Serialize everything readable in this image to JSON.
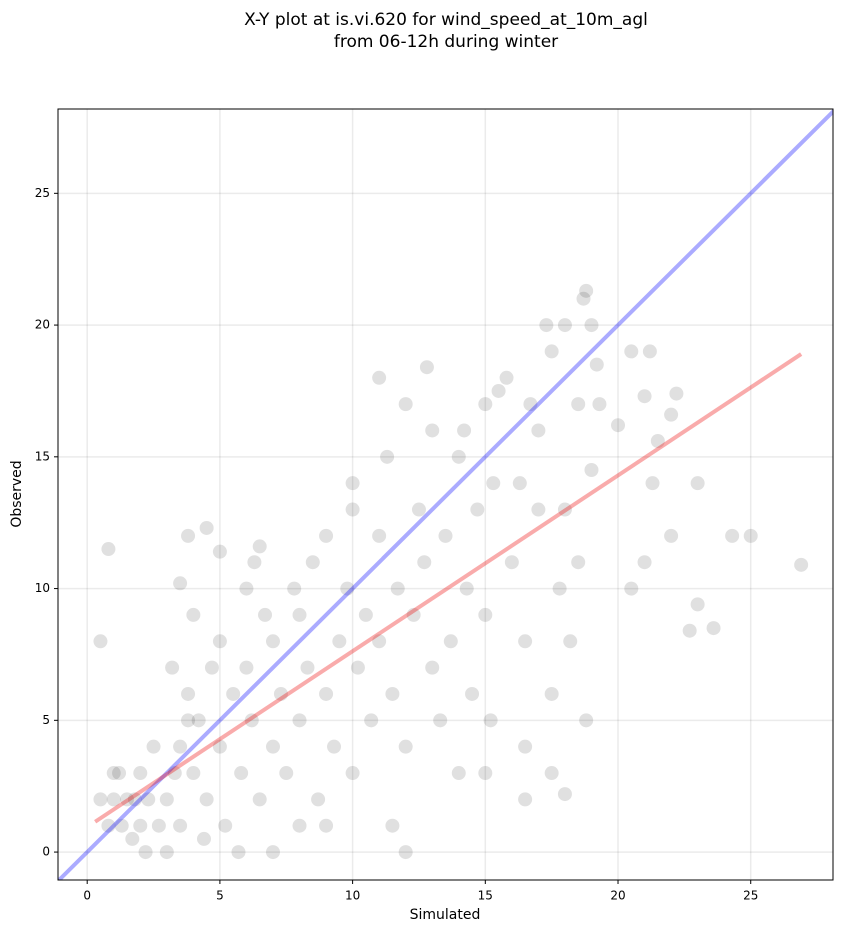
{
  "chart_data": {
    "type": "scatter",
    "title": [
      "X-Y plot at is.vi.620 for wind_speed_at_10m_agl",
      "from 06-12h during winter"
    ],
    "x_label": "Simulated",
    "y_label": "Observed",
    "xlim": [
      -1.1,
      28.1
    ],
    "ylim": [
      -1.06,
      28.2
    ],
    "xticks": [
      0,
      5,
      10,
      15,
      20,
      25
    ],
    "yticks": [
      0,
      5,
      10,
      15,
      20,
      25
    ],
    "grid": true,
    "series": [
      {
        "color": "#000000",
        "x": [
          0.5,
          0.8,
          1,
          1.2,
          1.3,
          1.5,
          1.7,
          2,
          2,
          2.3,
          2.5,
          2.7,
          3,
          3,
          3.3,
          3.5,
          3.8,
          1,
          1.8,
          2.2,
          3.5,
          3.8,
          4,
          4.2,
          4.5,
          4.7,
          5,
          5,
          5.2,
          5.5,
          5.8,
          6,
          6,
          6.2,
          6.5,
          6.7,
          4,
          3.2,
          4.4,
          5.7,
          7,
          7,
          7.3,
          7.5,
          7.8,
          8,
          8,
          8.3,
          8.5,
          8.7,
          9,
          9,
          9.3,
          9.5,
          9.8,
          10,
          10,
          10.2,
          10.5,
          10.7,
          10,
          8,
          9,
          7,
          6.3,
          11,
          11,
          11.3,
          11.5,
          11.7,
          12,
          12,
          12.3,
          12.5,
          12.7,
          13,
          13,
          13.3,
          13.5,
          13.7,
          14,
          14,
          14.3,
          14.5,
          14.7,
          15,
          15,
          15.2,
          15,
          11,
          12.8,
          14.2,
          15.3,
          12,
          11.5,
          15.5,
          15.8,
          16,
          16.3,
          16.5,
          16.5,
          16.7,
          17,
          17,
          17.5,
          17.5,
          17.8,
          18,
          18,
          18.2,
          18.5,
          18.5,
          18.7,
          18.8,
          19,
          19,
          19.3,
          19.2,
          18.8,
          17.3,
          16.5,
          18,
          17.5,
          20,
          20.5,
          20.5,
          21,
          21,
          21.2,
          21.5,
          21.3,
          22,
          22.2,
          22,
          23,
          23,
          22.7,
          23.6,
          24.3,
          25,
          26.9,
          0.5,
          0.8,
          4.5,
          3.8,
          5,
          6.5,
          3.5
        ],
        "values": [
          2,
          1,
          2,
          3,
          1,
          2,
          0.5,
          1,
          3,
          2,
          4,
          1,
          2,
          0,
          3,
          1,
          5,
          3,
          2,
          0,
          4,
          6,
          3,
          5,
          2,
          7,
          4,
          8,
          1,
          6,
          3,
          7,
          10,
          5,
          2,
          9,
          9,
          7,
          0.5,
          0,
          4,
          8,
          6,
          3,
          10,
          5,
          9,
          7,
          11,
          2,
          6,
          12,
          4,
          8,
          10,
          3,
          13,
          7,
          9,
          5,
          14,
          1,
          1,
          0,
          11,
          12,
          8,
          15,
          6,
          10,
          17,
          4,
          9,
          13,
          11,
          7,
          16,
          5,
          12,
          8,
          15,
          3,
          10,
          6,
          13,
          17,
          9,
          5,
          3,
          18,
          18.4,
          16,
          14,
          0,
          1,
          17.5,
          18,
          11,
          14,
          8,
          4,
          17,
          16,
          13,
          19,
          6,
          10,
          20,
          13,
          8,
          17,
          11,
          21,
          5,
          20,
          14.5,
          17,
          18.5,
          21.3,
          20,
          2,
          2.2,
          3,
          16.2,
          19,
          10,
          17.3,
          11,
          19,
          15.6,
          14,
          16.6,
          17.4,
          12,
          14,
          9.4,
          8.4,
          8.5,
          12,
          12,
          10.9,
          8,
          11.5,
          12.3,
          12,
          11.4,
          11.6,
          10.2
        ]
      }
    ],
    "lines": [
      {
        "color": "#0000ff",
        "x": [
          -1.1,
          28.2
        ],
        "values": [
          -1.1,
          28.2
        ]
      },
      {
        "color": "#ee0000",
        "x": [
          0.3,
          26.9
        ],
        "values": [
          1.15,
          18.9
        ]
      }
    ]
  }
}
